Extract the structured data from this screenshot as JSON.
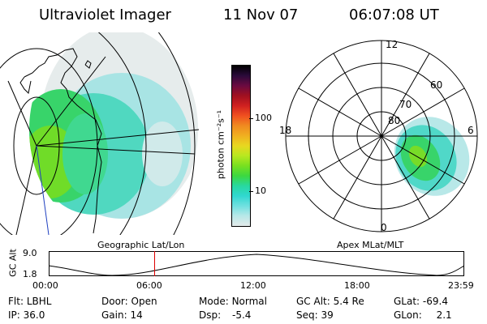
{
  "header": {
    "title": "Ultraviolet Imager",
    "date": "11 Nov 07",
    "time": "06:07:08 UT"
  },
  "geo_map": {
    "caption": "Geographic Lat/Lon"
  },
  "colorbar": {
    "unit_label": "photon cm⁻²s⁻¹",
    "tick_labels": [
      "100",
      "10"
    ],
    "colors": [
      "#000000",
      "#2a0a3a",
      "#6a0a40",
      "#a01020",
      "#d02020",
      "#f05020",
      "#f08a20",
      "#f0b020",
      "#e8d820",
      "#b8e820",
      "#78e020",
      "#3cd840",
      "#28d8a0",
      "#30d8d0",
      "#70e0e0",
      "#b8e8e8",
      "#e4eaea"
    ]
  },
  "polar_plot": {
    "caption": "Apex MLat/MLT",
    "mlt_labels": {
      "top": "12",
      "left": "18",
      "right": "6",
      "bottom": "0"
    },
    "mlat_labels": [
      "80",
      "70",
      "60"
    ]
  },
  "altitude_plot": {
    "ylabel": "GC Alt",
    "y_ticks": [
      "9.0",
      "1.8"
    ],
    "x_ticks": [
      "00:00",
      "06:00",
      "12:00",
      "18:00",
      "23:59"
    ],
    "marker_time": "06:07",
    "marker_color": "#dd0000"
  },
  "info": {
    "flt_label": "Flt:",
    "flt_value": "LBHL",
    "ip_label": "IP:",
    "ip_value": "36.0",
    "door_label": "Door:",
    "door_value": "Open",
    "gain_label": "Gain:",
    "gain_value": "14",
    "mode_label": "Mode:",
    "mode_value": "Normal",
    "dsp_label": "Dsp:",
    "dsp_value": "-5.4",
    "gcalt_label": "GC Alt:",
    "gcalt_value": "5.4 Re",
    "seq_label": "Seq:",
    "seq_value": "39",
    "glat_label": "GLat:",
    "glat_value": "-69.4",
    "glon_label": "GLon:",
    "glon_value": "2.1"
  }
}
